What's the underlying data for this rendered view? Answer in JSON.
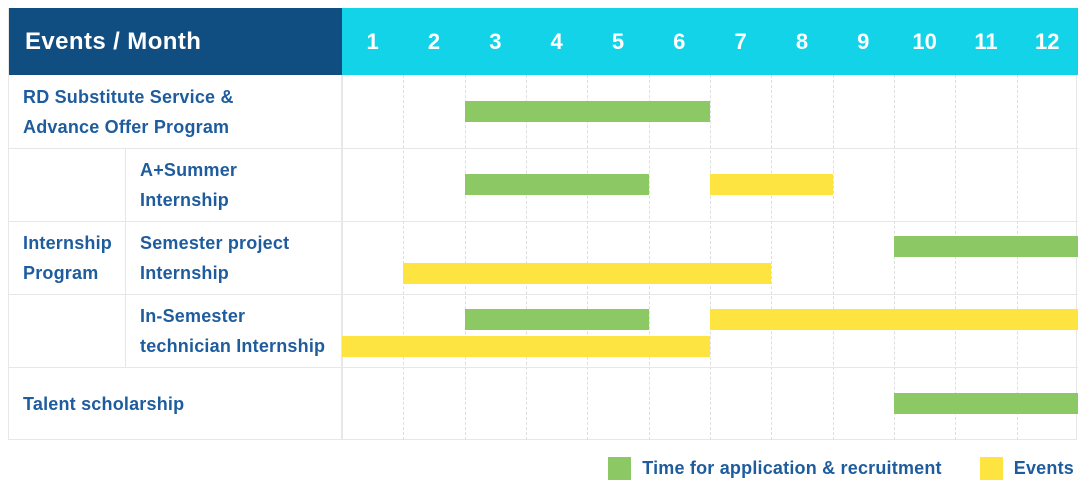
{
  "header": {
    "corner_label": "Events / Month",
    "months": [
      "1",
      "2",
      "3",
      "4",
      "5",
      "6",
      "7",
      "8",
      "9",
      "10",
      "11",
      "12"
    ]
  },
  "legend": {
    "application_label": "Time for application & recruitment",
    "events_label": "Events"
  },
  "colors": {
    "header_bg": "#104d80",
    "month_header_bg": "#12d3e8",
    "text_blue": "#1e5c9e",
    "application_green": "#8cc863",
    "events_yellow": "#fee440",
    "grid_line": "#e7e7e7"
  },
  "chart_data": {
    "type": "gantt",
    "title": "Events / Month",
    "x_unit": "month",
    "x_range": [
      1,
      12
    ],
    "grid": true,
    "legend_position": "bottom-right",
    "series_legend": [
      {
        "name": "Time for application & recruitment",
        "series": "application",
        "color": "#8cc863"
      },
      {
        "name": "Events",
        "series": "events",
        "color": "#fee440"
      }
    ],
    "rows": [
      {
        "group": null,
        "label_lines": [
          "RD Substitute Service &",
          "Advance Offer Program"
        ],
        "bars": [
          {
            "series": "application",
            "start_month": 3,
            "end_month": 6,
            "lane": "center"
          }
        ]
      },
      {
        "group": "Internship Program",
        "label_lines": [
          "A+Summer",
          "Internship"
        ],
        "bars": [
          {
            "series": "application",
            "start_month": 3,
            "end_month": 5,
            "lane": "center"
          },
          {
            "series": "events",
            "start_month": 7,
            "end_month": 8,
            "lane": "center"
          }
        ]
      },
      {
        "group": "Internship Program",
        "label_lines": [
          "Semester project",
          "Internship"
        ],
        "bars": [
          {
            "series": "application",
            "start_month": 10,
            "end_month": 12,
            "lane": "top"
          },
          {
            "series": "events",
            "start_month": 2,
            "end_month": 7,
            "lane": "bottom"
          }
        ]
      },
      {
        "group": "Internship Program",
        "label_lines": [
          "In-Semester",
          "technician Internship"
        ],
        "bars": [
          {
            "series": "application",
            "start_month": 3,
            "end_month": 5,
            "lane": "top"
          },
          {
            "series": "events",
            "start_month": 7,
            "end_month": 12,
            "lane": "top"
          },
          {
            "series": "events",
            "start_month": 1,
            "end_month": 6,
            "lane": "bottom"
          }
        ]
      },
      {
        "group": null,
        "label_lines": [
          "Talent scholarship"
        ],
        "bars": [
          {
            "series": "application",
            "start_month": 10,
            "end_month": 12,
            "lane": "center"
          }
        ]
      }
    ],
    "group_label_lines": [
      "Internship",
      "Program"
    ]
  }
}
